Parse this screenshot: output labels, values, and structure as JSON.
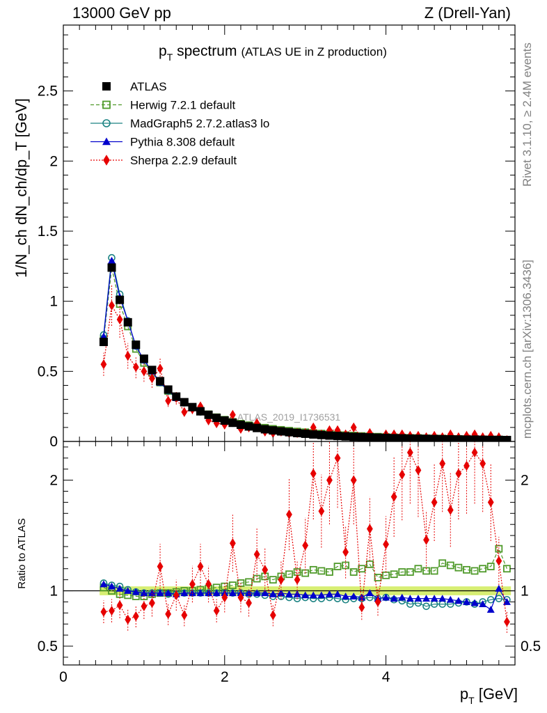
{
  "header": {
    "left": "13000 GeV pp",
    "right": "Z (Drell-Yan)"
  },
  "side_labels": {
    "rivet": "Rivet 3.1.10, ≥ 2.4M events",
    "mcplots": "mcplots.cern.ch [arXiv:1306.3436]"
  },
  "chart_data": [
    {
      "type": "line",
      "title_main": "p",
      "title_sub": "T",
      "title_rest": " spectrum",
      "title_paren": "(ATLAS UE in Z production)",
      "ylabel": "1/N_ch dN_ch/dp_T [GeV]",
      "ylim": [
        0,
        2.97
      ],
      "xlim": [
        0,
        5.6
      ],
      "yticks": [
        0,
        0.5,
        1,
        1.5,
        2,
        2.5
      ],
      "ytick_labels": [
        "0",
        "0.5",
        "1",
        "1.5",
        "2",
        "2.5"
      ],
      "watermark": "ATLAS_2019_I1736531",
      "legend_placement": "top-left",
      "x": [
        0.5,
        0.6,
        0.7,
        0.8,
        0.9,
        1.0,
        1.1,
        1.2,
        1.3,
        1.4,
        1.5,
        1.6,
        1.7,
        1.8,
        1.9,
        2.0,
        2.1,
        2.2,
        2.3,
        2.4,
        2.5,
        2.6,
        2.7,
        2.8,
        2.9,
        3.0,
        3.1,
        3.2,
        3.3,
        3.4,
        3.5,
        3.6,
        3.7,
        3.8,
        3.9,
        4.0,
        4.1,
        4.2,
        4.3,
        4.4,
        4.5,
        4.6,
        4.7,
        4.8,
        4.9,
        5.0,
        5.1,
        5.2,
        5.3,
        5.4,
        5.5
      ],
      "series": [
        {
          "name": "ATLAS",
          "color": "#000000",
          "marker": "filled-square",
          "values": [
            0.71,
            1.24,
            1.01,
            0.85,
            0.69,
            0.59,
            0.51,
            0.43,
            0.37,
            0.32,
            0.28,
            0.245,
            0.215,
            0.19,
            0.168,
            0.149,
            0.133,
            0.119,
            0.107,
            0.096,
            0.087,
            0.079,
            0.072,
            0.066,
            0.06,
            0.055,
            0.05,
            0.046,
            0.042,
            0.039,
            0.036,
            0.033,
            0.031,
            0.029,
            0.027,
            0.025,
            0.023,
            0.022,
            0.02,
            0.019,
            0.018,
            0.017,
            0.016,
            0.015,
            0.014,
            0.013,
            0.013,
            0.012,
            0.011,
            0.011,
            0.01
          ]
        },
        {
          "name": "Herwig 7.2.1 default",
          "color": "#4f9a2a",
          "marker": "open-square",
          "line": "dashed",
          "values": [
            0.73,
            1.24,
            0.98,
            0.82,
            0.66,
            0.56,
            0.49,
            0.42,
            0.36,
            0.32,
            0.28,
            0.245,
            0.218,
            0.194,
            0.173,
            0.155,
            0.14,
            0.127,
            0.116,
            0.107,
            0.098,
            0.09,
            0.083,
            0.077,
            0.071,
            0.066,
            0.061,
            0.056,
            0.052,
            0.049,
            0.045,
            0.042,
            0.039,
            0.037,
            0.034,
            0.032,
            0.03,
            0.028,
            0.026,
            0.025,
            0.023,
            0.022,
            0.021,
            0.019,
            0.018,
            0.017,
            0.016,
            0.015,
            0.014,
            0.014,
            0.013
          ]
        },
        {
          "name": "MadGraph5 2.7.2.atlas3 lo",
          "color": "#1a8282",
          "marker": "open-circle",
          "line": "solid",
          "values": [
            0.76,
            1.31,
            1.05,
            0.86,
            0.68,
            0.58,
            0.5,
            0.42,
            0.36,
            0.31,
            0.275,
            0.24,
            0.21,
            0.185,
            0.164,
            0.146,
            0.13,
            0.116,
            0.104,
            0.093,
            0.083,
            0.075,
            0.068,
            0.062,
            0.056,
            0.051,
            0.047,
            0.043,
            0.039,
            0.036,
            0.033,
            0.031,
            0.029,
            0.027,
            0.025,
            0.023,
            0.021,
            0.02,
            0.018,
            0.017,
            0.016,
            0.015,
            0.014,
            0.013,
            0.012,
            0.012,
            0.011,
            0.011,
            0.01,
            0.01,
            0.009
          ]
        },
        {
          "name": "Pythia 8.308 default",
          "color": "#0000cc",
          "marker": "filled-triangle",
          "line": "solid",
          "values": [
            0.75,
            1.29,
            1.03,
            0.86,
            0.68,
            0.58,
            0.5,
            0.42,
            0.365,
            0.31,
            0.275,
            0.24,
            0.21,
            0.185,
            0.165,
            0.147,
            0.131,
            0.117,
            0.105,
            0.094,
            0.085,
            0.077,
            0.07,
            0.064,
            0.058,
            0.053,
            0.048,
            0.044,
            0.041,
            0.038,
            0.035,
            0.032,
            0.03,
            0.028,
            0.026,
            0.024,
            0.022,
            0.021,
            0.019,
            0.018,
            0.017,
            0.016,
            0.015,
            0.014,
            0.013,
            0.012,
            0.012,
            0.011,
            0.01,
            0.01,
            0.009
          ]
        },
        {
          "name": "Sherpa 2.2.9 default",
          "color": "#e60000",
          "marker": "filled-diamond",
          "line": "dotted",
          "values": [
            0.55,
            0.97,
            0.87,
            0.61,
            0.53,
            0.5,
            0.45,
            0.52,
            0.29,
            0.31,
            0.21,
            0.23,
            0.25,
            0.15,
            0.13,
            0.12,
            0.19,
            0.09,
            0.1,
            0.13,
            0.07,
            0.06,
            0.07,
            0.06,
            0.06,
            0.06,
            0.1,
            0.05,
            0.08,
            0.08,
            0.05,
            0.1,
            0.03,
            0.06,
            0.02,
            0.05,
            0.05,
            0.05,
            0.04,
            0.04,
            0.03,
            0.04,
            0.03,
            0.05,
            0.03,
            0.04,
            0.05,
            0.03,
            0.04,
            0.03,
            0.01
          ]
        }
      ]
    },
    {
      "type": "line",
      "ylabel": "Ratio to ATLAS",
      "ylim": [
        0.33,
        2.35
      ],
      "xlim": [
        0,
        5.6
      ],
      "xlabel_main": "p",
      "xlabel_sub": "T",
      "xlabel_rest": " [GeV]",
      "xticks": [
        0,
        2,
        4
      ],
      "xtick_labels": [
        "0",
        "2",
        "4"
      ],
      "yticks": [
        0.5,
        1,
        2
      ],
      "ytick_labels": [
        "0.5",
        "1",
        "2"
      ],
      "band": {
        "color": "#d7ee73",
        "half_width": 0.04
      },
      "x": [
        0.5,
        0.6,
        0.7,
        0.8,
        0.9,
        1.0,
        1.1,
        1.2,
        1.3,
        1.4,
        1.5,
        1.6,
        1.7,
        1.8,
        1.9,
        2.0,
        2.1,
        2.2,
        2.3,
        2.4,
        2.5,
        2.6,
        2.7,
        2.8,
        2.9,
        3.0,
        3.1,
        3.2,
        3.3,
        3.4,
        3.5,
        3.6,
        3.7,
        3.8,
        3.9,
        4.0,
        4.1,
        4.2,
        4.3,
        4.4,
        4.5,
        4.6,
        4.7,
        4.8,
        4.9,
        5.0,
        5.1,
        5.2,
        5.3,
        5.4,
        5.5
      ],
      "series": [
        {
          "name": "Herwig 7.2.1 default",
          "color": "#4f9a2a",
          "values": [
            1.03,
            1.0,
            0.97,
            0.96,
            0.95,
            0.95,
            0.97,
            0.98,
            0.98,
            0.99,
            1.0,
            1.0,
            1.01,
            1.02,
            1.03,
            1.04,
            1.05,
            1.07,
            1.08,
            1.11,
            1.13,
            1.1,
            1.13,
            1.15,
            1.17,
            1.16,
            1.19,
            1.18,
            1.17,
            1.22,
            1.23,
            1.17,
            1.2,
            1.24,
            1.12,
            1.14,
            1.15,
            1.17,
            1.17,
            1.2,
            1.18,
            1.18,
            1.25,
            1.23,
            1.21,
            1.19,
            1.18,
            1.2,
            1.22,
            1.38,
            1.2
          ]
        },
        {
          "name": "MadGraph5 2.7.2.atlas3 lo",
          "color": "#1a8282",
          "values": [
            1.07,
            1.05,
            1.04,
            1.01,
            0.99,
            0.98,
            0.98,
            0.98,
            0.97,
            0.97,
            0.98,
            0.98,
            0.98,
            0.98,
            0.98,
            0.98,
            0.98,
            0.98,
            0.97,
            0.97,
            0.96,
            0.95,
            0.95,
            0.94,
            0.93,
            0.94,
            0.93,
            0.93,
            0.94,
            0.93,
            0.92,
            0.93,
            0.93,
            0.94,
            0.93,
            0.94,
            0.92,
            0.91,
            0.88,
            0.89,
            0.86,
            0.88,
            0.88,
            0.88,
            0.89,
            0.9,
            0.88,
            0.9,
            0.92,
            0.93,
            0.92
          ]
        },
        {
          "name": "Pythia 8.308 default",
          "color": "#0000cc",
          "values": [
            1.06,
            1.04,
            1.02,
            1.0,
            0.99,
            0.98,
            0.98,
            0.98,
            0.98,
            0.97,
            0.98,
            0.98,
            0.98,
            0.98,
            0.98,
            0.98,
            0.98,
            0.98,
            0.98,
            0.98,
            0.98,
            0.97,
            0.98,
            0.97,
            0.97,
            0.96,
            0.96,
            0.96,
            0.97,
            0.97,
            0.95,
            0.95,
            0.94,
            0.98,
            0.93,
            0.94,
            0.93,
            0.94,
            0.93,
            0.93,
            0.93,
            0.93,
            0.93,
            0.92,
            0.91,
            0.9,
            0.89,
            0.88,
            0.83,
            1.02,
            0.9
          ]
        },
        {
          "name": "Sherpa 2.2.9 default",
          "color": "#e60000",
          "values": [
            0.81,
            0.82,
            0.87,
            0.74,
            0.77,
            0.86,
            0.89,
            1.22,
            0.79,
            0.96,
            0.78,
            1.06,
            1.22,
            1.06,
            0.82,
            0.94,
            1.43,
            0.94,
            0.89,
            1.33,
            1.19,
            0.78,
            1.1,
            1.69,
            1.1,
            1.41,
            2.06,
            1.72,
            2.0,
            2.2,
            1.35,
            2.0,
            0.85,
            1.56,
            0.9,
            1.42,
            1.85,
            2.05,
            2.25,
            2.09,
            1.46,
            1.8,
            2.15,
            1.73,
            2.06,
            2.13,
            2.25,
            2.15,
            1.8,
            1.27,
            0.72
          ]
        }
      ]
    }
  ]
}
